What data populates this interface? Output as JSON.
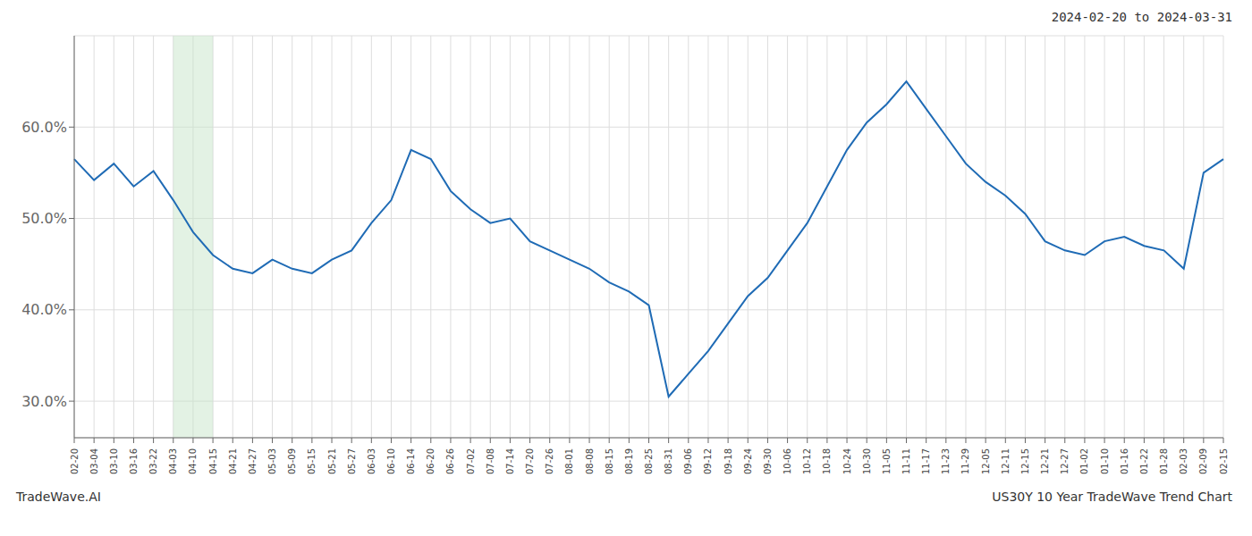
{
  "chart_data": {
    "type": "line",
    "title": "2024-02-20 to 2024-03-31",
    "annotations": [
      "TradeWave.AI",
      "US30Y 10 Year TradeWave Trend Chart"
    ],
    "categories": [
      "02-20",
      "03-04",
      "03-10",
      "03-16",
      "03-22",
      "04-03",
      "04-10",
      "04-15",
      "04-21",
      "04-27",
      "05-03",
      "05-09",
      "05-15",
      "05-21",
      "05-27",
      "06-03",
      "06-10",
      "06-14",
      "06-20",
      "06-26",
      "07-02",
      "07-08",
      "07-14",
      "07-20",
      "07-26",
      "08-01",
      "08-08",
      "08-15",
      "08-19",
      "08-25",
      "08-31",
      "09-06",
      "09-12",
      "09-18",
      "09-24",
      "09-30",
      "10-06",
      "10-12",
      "10-18",
      "10-24",
      "10-30",
      "11-05",
      "11-11",
      "11-17",
      "11-23",
      "11-29",
      "12-05",
      "12-11",
      "12-15",
      "12-21",
      "12-27",
      "01-02",
      "01-10",
      "01-16",
      "01-22",
      "01-28",
      "02-03",
      "02-09",
      "02-15"
    ],
    "values": [
      56.5,
      54.2,
      56.0,
      53.5,
      55.2,
      52.0,
      48.5,
      46.0,
      44.5,
      44.0,
      45.5,
      44.5,
      44.0,
      45.5,
      46.5,
      49.5,
      52.0,
      57.5,
      56.5,
      53.0,
      51.0,
      49.5,
      50.0,
      47.5,
      46.5,
      45.5,
      44.5,
      43.0,
      42.0,
      40.5,
      30.5,
      33.0,
      35.5,
      38.5,
      41.5,
      43.5,
      46.5,
      49.5,
      53.5,
      57.5,
      60.5,
      62.5,
      65.0,
      62.0,
      59.0,
      56.0,
      54.0,
      52.5,
      50.5,
      47.5,
      46.5,
      46.0,
      47.5,
      48.0,
      47.0,
      46.5,
      44.5,
      55.0,
      56.5
    ],
    "color": "#1f6bb5",
    "highlight": {
      "from": "04-03",
      "to": "04-15",
      "color": "#c8e6c9"
    },
    "ylim": [
      26,
      70
    ],
    "yticks": [
      {
        "value": 30,
        "label": "30.0%"
      },
      {
        "value": 40,
        "label": "40.0%"
      },
      {
        "value": 50,
        "label": "50.0%"
      },
      {
        "value": 60,
        "label": "60.0%"
      }
    ],
    "grid": true
  }
}
